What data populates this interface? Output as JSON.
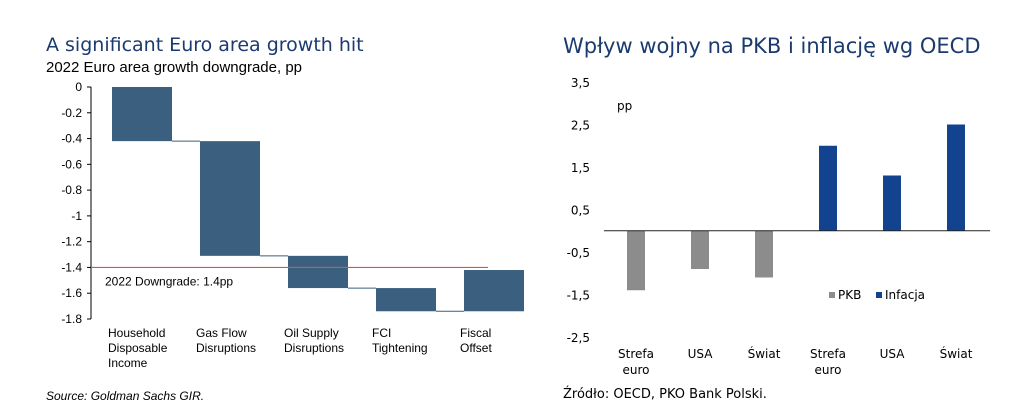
{
  "left_chart": {
    "title": "A significant Euro area growth hit",
    "subtitle": "2022 Euro area growth downgrade, pp",
    "source": "Source: Goldman Sachs GIR."
  },
  "right_chart": {
    "title": "Wpływ wojny na PKB i inflację wg OECD",
    "source": "Źródło: OECD, PKO Bank Polski."
  },
  "colors": {
    "bar_left": "#3b5f7f",
    "bar_pkb": "#8c8c8c",
    "bar_inflation": "#13428f",
    "ref_line": "#d9534f",
    "title": "#1b3b6f"
  },
  "chart_data": [
    {
      "type": "bar",
      "subtype": "waterfall",
      "title": "A significant Euro area growth hit",
      "subtitle": "2022 Euro area growth downgrade, pp",
      "categories": [
        [
          "Household",
          "Disposable",
          "Income"
        ],
        [
          "Gas Flow",
          "Disruptions"
        ],
        [
          "Oil Supply",
          "Disruptions"
        ],
        [
          "FCI",
          "Tightening"
        ],
        [
          "Fiscal",
          "Offset"
        ]
      ],
      "bars": [
        {
          "start": 0,
          "end": -0.42
        },
        {
          "start": -0.42,
          "end": -1.31
        },
        {
          "start": -1.31,
          "end": -1.56
        },
        {
          "start": -1.56,
          "end": -1.74
        },
        {
          "start": -1.74,
          "end": -1.42
        }
      ],
      "ylim": [
        -1.8,
        0
      ],
      "yticks": [
        "0",
        "-0.2",
        "-0.4",
        "-0.6",
        "-0.8",
        "-1",
        "-1.2",
        "-1.4",
        "-1.6",
        "-1.8"
      ],
      "ytick_values": [
        0,
        -0.2,
        -0.4,
        -0.6,
        -0.8,
        -1,
        -1.2,
        -1.4,
        -1.6,
        -1.8
      ],
      "reference_line": {
        "value": -1.4,
        "label": "2022 Downgrade: 1.4pp"
      },
      "grid": false
    },
    {
      "type": "bar",
      "ylabel": "pp",
      "ylim": [
        -2.5,
        3.5
      ],
      "yticks": [
        "3,5",
        "2,5",
        "1,5",
        "0,5",
        "-0,5",
        "-1,5",
        "-2,5"
      ],
      "ytick_values": [
        3.5,
        2.5,
        1.5,
        0.5,
        -0.5,
        -1.5,
        -2.5
      ],
      "categories": [
        [
          "Strefa",
          "euro"
        ],
        [
          "USA"
        ],
        [
          "Świat"
        ],
        [
          "Strefa",
          "euro"
        ],
        [
          "USA"
        ],
        [
          "Świat"
        ]
      ],
      "series": [
        {
          "name": "PKB",
          "values": [
            -1.4,
            -0.9,
            -1.1,
            null,
            null,
            null
          ]
        },
        {
          "name": "Infacja",
          "values": [
            null,
            null,
            null,
            2.0,
            1.3,
            2.5
          ]
        }
      ],
      "legend": "bottom-right",
      "grid": false
    }
  ]
}
